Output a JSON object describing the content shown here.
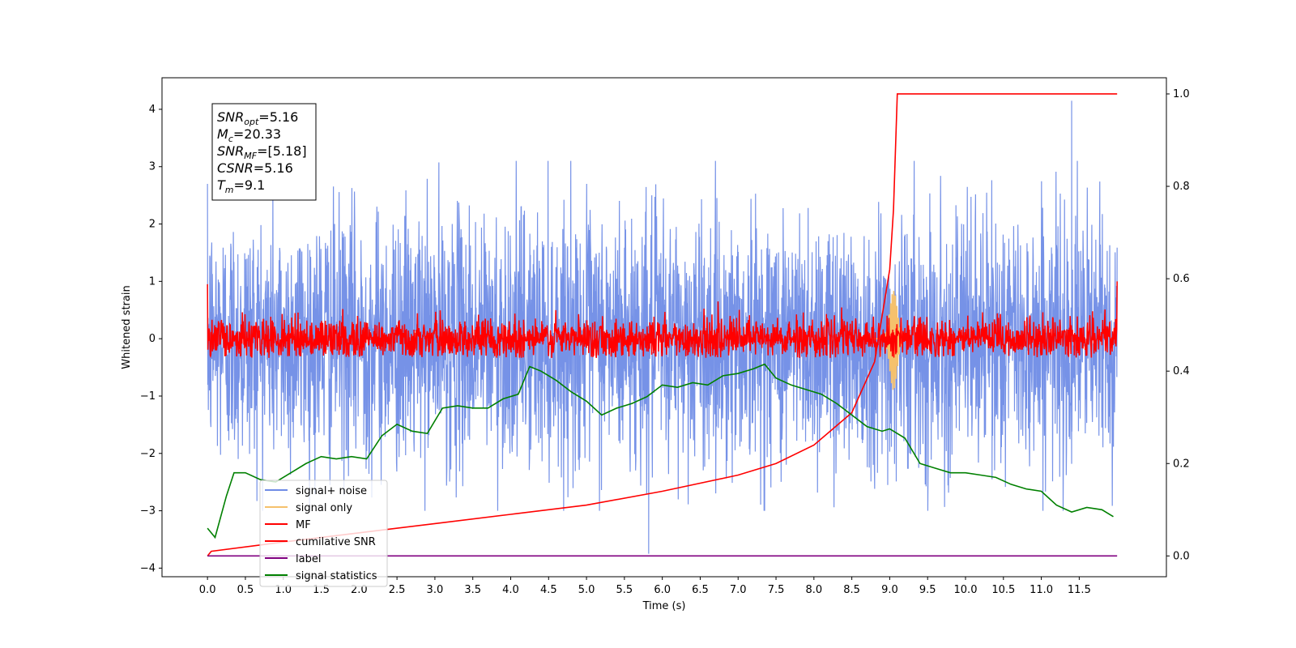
{
  "chart_data": {
    "type": "line",
    "xlabel": "Time (s)",
    "ylabel": "Whitened strain",
    "xlim": [
      -0.6,
      12.65
    ],
    "ylim": [
      -4.15,
      4.55
    ],
    "ylim_right": [
      -0.045,
      1.035
    ],
    "x_ticks": [
      "0.0",
      "0.5",
      "1.0",
      "1.5",
      "2.0",
      "2.5",
      "3.0",
      "3.5",
      "4.0",
      "4.5",
      "5.0",
      "5.5",
      "6.0",
      "6.5",
      "7.0",
      "7.5",
      "8.0",
      "8.5",
      "9.0",
      "9.5",
      "10.0",
      "10.5",
      "11.0",
      "11.5"
    ],
    "y_ticks": [
      "−4",
      "−3",
      "−2",
      "−1",
      "0",
      "1",
      "2",
      "3",
      "4"
    ],
    "y2_ticks": [
      "0.0",
      "0.2",
      "0.4",
      "0.6",
      "0.8",
      "1.0"
    ],
    "series": [
      {
        "name": "signal+ noise",
        "axis": "left",
        "color": "#6f8ce6",
        "kind": "noise",
        "x_range": [
          0,
          12.0
        ],
        "std": 1.1,
        "min_spike": [
          5.82,
          -3.75
        ],
        "max_spike": [
          11.4,
          4.15
        ]
      },
      {
        "name": "signal only",
        "axis": "left",
        "color": "#f5c16c",
        "kind": "chirp",
        "center": 9.05,
        "peak": 0.9
      },
      {
        "name": "MF",
        "axis": "left",
        "color": "#ff0000",
        "kind": "noise",
        "x_range": [
          0,
          12.0
        ],
        "std": 0.18
      },
      {
        "name": "cumilative SNR",
        "axis": "right",
        "color": "#ff0000",
        "kind": "curve",
        "x": [
          0,
          0.05,
          1.0,
          2.0,
          3.0,
          4.0,
          5.0,
          6.0,
          7.0,
          7.5,
          8.0,
          8.5,
          8.8,
          9.0,
          9.05,
          9.08,
          9.1,
          12.0
        ],
        "values": [
          0.0,
          0.01,
          0.03,
          0.05,
          0.07,
          0.09,
          0.11,
          0.14,
          0.175,
          0.2,
          0.24,
          0.31,
          0.42,
          0.62,
          0.75,
          0.9,
          1.0,
          1.0
        ]
      },
      {
        "name": "label",
        "axis": "right",
        "color": "#800080",
        "kind": "curve",
        "x": [
          0,
          12.0
        ],
        "values": [
          0.0,
          0.0
        ]
      },
      {
        "name": "signal statistics",
        "axis": "right",
        "color": "#008000",
        "kind": "curve",
        "x": [
          0,
          0.1,
          0.25,
          0.35,
          0.5,
          0.7,
          0.9,
          1.1,
          1.3,
          1.5,
          1.7,
          1.9,
          2.1,
          2.3,
          2.5,
          2.7,
          2.9,
          3.1,
          3.3,
          3.5,
          3.7,
          3.9,
          4.1,
          4.25,
          4.4,
          4.6,
          4.8,
          5.0,
          5.2,
          5.4,
          5.6,
          5.8,
          6.0,
          6.2,
          6.4,
          6.6,
          6.8,
          7.0,
          7.2,
          7.35,
          7.5,
          7.7,
          7.9,
          8.1,
          8.3,
          8.5,
          8.7,
          8.9,
          9.0,
          9.2,
          9.4,
          9.6,
          9.8,
          10.0,
          10.2,
          10.4,
          10.6,
          10.8,
          11.0,
          11.2,
          11.4,
          11.6,
          11.8,
          11.95
        ],
        "values": [
          0.06,
          0.04,
          0.13,
          0.18,
          0.18,
          0.165,
          0.16,
          0.18,
          0.2,
          0.215,
          0.21,
          0.215,
          0.21,
          0.26,
          0.285,
          0.27,
          0.265,
          0.32,
          0.325,
          0.32,
          0.32,
          0.34,
          0.35,
          0.41,
          0.4,
          0.38,
          0.355,
          0.335,
          0.305,
          0.32,
          0.33,
          0.345,
          0.37,
          0.365,
          0.375,
          0.37,
          0.39,
          0.395,
          0.405,
          0.415,
          0.385,
          0.37,
          0.36,
          0.35,
          0.33,
          0.305,
          0.28,
          0.27,
          0.275,
          0.255,
          0.2,
          0.19,
          0.18,
          0.18,
          0.175,
          0.17,
          0.155,
          0.145,
          0.14,
          0.11,
          0.095,
          0.105,
          0.1,
          0.085
        ]
      }
    ],
    "legend_position": "lower-left",
    "annotation_box": [
      {
        "sym": "SNR",
        "sub": "opt",
        "value": "=5.16"
      },
      {
        "sym": "M",
        "sub": "c",
        "value": "=20.33"
      },
      {
        "sym": "SNR",
        "sub": "MF",
        "value": "=[5.18]"
      },
      {
        "sym": "CSNR",
        "sub": "",
        "value": "=5.16"
      },
      {
        "sym": "T",
        "sub": "m",
        "value": "=9.1"
      }
    ]
  }
}
